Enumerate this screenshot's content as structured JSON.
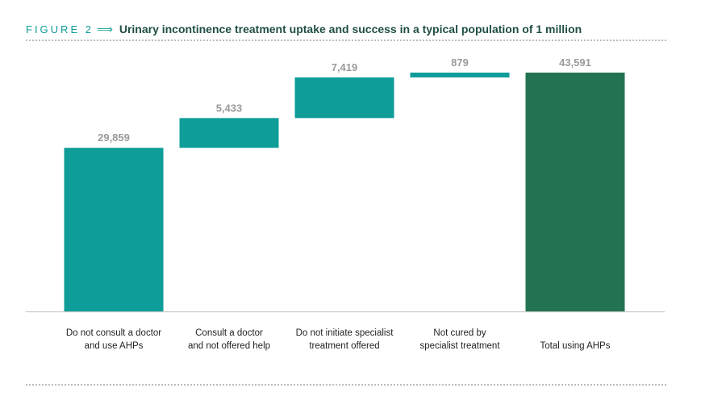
{
  "figure": {
    "label": "FIGURE 2",
    "arrow": "⟹",
    "title": "Urinary incontinence treatment uptake and success in a typical population of 1 million"
  },
  "colors": {
    "teal": "#0e9d98",
    "dark_green": "#237352",
    "label_grey": "#9a9a9a",
    "baseline": "#c9c9c9"
  },
  "chart_data": {
    "type": "bar",
    "subtype": "waterfall",
    "title": "Urinary incontinence treatment uptake and success in a typical population of 1 million",
    "xlabel": "",
    "ylabel": "",
    "ylim": [
      0,
      45000
    ],
    "grid": false,
    "legend": "none",
    "categories": [
      [
        "Do not consult a doctor",
        "and use AHPs"
      ],
      [
        "Consult a doctor",
        "and not offered help"
      ],
      [
        "Do not initiate specialist",
        "treatment offered"
      ],
      [
        "Not cured by",
        "specialist treatment"
      ],
      [
        "Total using AHPs"
      ]
    ],
    "values": [
      29859,
      5433,
      7419,
      879,
      43591
    ],
    "value_labels": [
      "29,859",
      "5,433",
      "7,419",
      "879",
      "43,591"
    ],
    "bar_kind": [
      "increment",
      "increment",
      "increment",
      "increment",
      "total"
    ]
  }
}
